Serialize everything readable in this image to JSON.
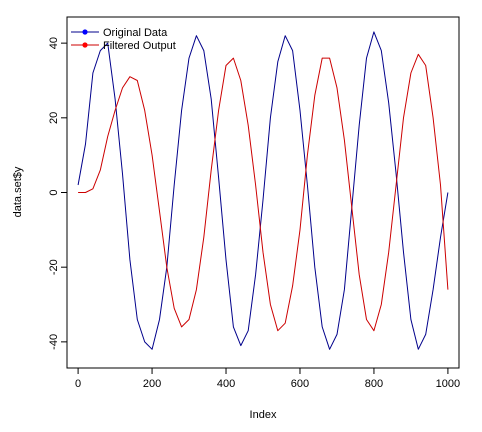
{
  "chart_data": {
    "type": "line",
    "xlabel": "Index",
    "ylabel": "data.set$y",
    "xlim": [
      -30,
      1030
    ],
    "ylim": [
      -47,
      47
    ],
    "x_ticks": [
      0,
      200,
      400,
      600,
      800,
      1000
    ],
    "y_ticks": [
      -40,
      -20,
      0,
      20,
      40
    ],
    "x_tick_labels": [
      "0",
      "200",
      "400",
      "600",
      "800",
      "1000"
    ],
    "y_tick_labels": [
      "-40",
      "-20",
      "0",
      "20",
      "40"
    ],
    "legend_position": "top-left",
    "series": [
      {
        "name": "Original Data",
        "color": "#00008B",
        "x": [
          0,
          20,
          40,
          60,
          80,
          100,
          120,
          140,
          160,
          180,
          200,
          220,
          240,
          260,
          280,
          300,
          320,
          340,
          360,
          380,
          400,
          420,
          440,
          460,
          480,
          500,
          520,
          540,
          560,
          580,
          600,
          620,
          640,
          660,
          680,
          700,
          720,
          740,
          760,
          780,
          800,
          820,
          840,
          860,
          880,
          900,
          920,
          940,
          960,
          980,
          1000
        ],
        "values": [
          2,
          13,
          32,
          38,
          40,
          25,
          5,
          -18,
          -34,
          -40,
          -42,
          -34,
          -20,
          2,
          22,
          36,
          42,
          38,
          25,
          4,
          -18,
          -36,
          -41,
          -37,
          -22,
          -2,
          20,
          35,
          42,
          38,
          22,
          2,
          -20,
          -36,
          -42,
          -38,
          -26,
          -4,
          18,
          36,
          43,
          38,
          24,
          5,
          -16,
          -34,
          -42,
          -38,
          -26,
          -12,
          0
        ]
      },
      {
        "name": "Filtered Output",
        "color": "#CC0000",
        "x": [
          0,
          20,
          40,
          60,
          80,
          100,
          120,
          140,
          160,
          180,
          200,
          220,
          240,
          260,
          280,
          300,
          320,
          340,
          360,
          380,
          400,
          420,
          440,
          460,
          480,
          500,
          520,
          540,
          560,
          580,
          600,
          620,
          640,
          660,
          680,
          700,
          720,
          740,
          760,
          780,
          800,
          820,
          840,
          860,
          880,
          900,
          920,
          940,
          960,
          980,
          1000
        ],
        "values": [
          0,
          0,
          1,
          6,
          15,
          22,
          28,
          31,
          30,
          22,
          10,
          -5,
          -20,
          -31,
          -36,
          -34,
          -26,
          -12,
          6,
          22,
          34,
          36,
          30,
          18,
          2,
          -16,
          -30,
          -37,
          -35,
          -25,
          -10,
          10,
          26,
          36,
          36,
          28,
          14,
          -4,
          -22,
          -34,
          -37,
          -30,
          -16,
          2,
          20,
          32,
          37,
          34,
          20,
          2,
          -26
        ]
      }
    ]
  }
}
